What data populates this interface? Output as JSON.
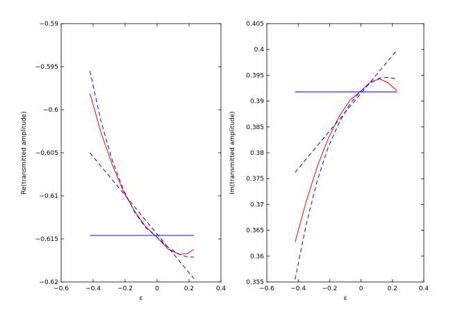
{
  "chart_data": [
    {
      "type": "line",
      "xlabel": "ε",
      "ylabel": "Re(transmitted amplitude)",
      "xlim": [
        -0.6,
        0.4
      ],
      "ylim": [
        -0.62,
        -0.59
      ],
      "xticks": [
        -0.6,
        -0.4,
        -0.2,
        0,
        0.2,
        0.4
      ],
      "xtick_labels": [
        "−0.6",
        "−0.4",
        "−0.2",
        "0",
        "0.2",
        "0.4"
      ],
      "yticks": [
        -0.59,
        -0.595,
        -0.6,
        -0.605,
        -0.61,
        -0.615,
        -0.62
      ],
      "ytick_labels": [
        "−0.59",
        "−0.595",
        "−0.6",
        "−0.605",
        "−0.61",
        "−0.615",
        "−0.62"
      ],
      "series": [
        {
          "color": "#ff0000",
          "style": "solid",
          "x": [
            -0.42,
            -0.35,
            -0.28,
            -0.21,
            -0.14,
            -0.07,
            0,
            0.07,
            0.14,
            0.19,
            0.23
          ],
          "y": [
            -0.5981,
            -0.6027,
            -0.6064,
            -0.6095,
            -0.6118,
            -0.6136,
            -0.6148,
            -0.6162,
            -0.6168,
            -0.6167,
            -0.6162
          ]
        },
        {
          "color": "#0000ff",
          "style": "solid",
          "x": [
            -0.42,
            0.23
          ],
          "y": [
            -0.6146,
            -0.6146
          ]
        },
        {
          "color": "#0000ff",
          "style": "dashed",
          "x": [
            -0.42,
            0.23
          ],
          "y": [
            -0.605,
            -0.6196
          ]
        },
        {
          "color": "#0000ff",
          "style": "dashed",
          "x": [
            -0.42,
            -0.35,
            -0.28,
            -0.21,
            -0.14,
            -0.07,
            0,
            0.07,
            0.14,
            0.19,
            0.23
          ],
          "y": [
            -0.5955,
            -0.6014,
            -0.6059,
            -0.6093,
            -0.6119,
            -0.6137,
            -0.6148,
            -0.616,
            -0.6168,
            -0.6171,
            -0.6171
          ]
        }
      ]
    },
    {
      "type": "line",
      "xlabel": "ε",
      "ylabel": "Im(transmitted amplitude)",
      "xlim": [
        -0.6,
        0.4
      ],
      "ylim": [
        0.355,
        0.405
      ],
      "xticks": [
        -0.6,
        -0.4,
        -0.2,
        0,
        0.2,
        0.4
      ],
      "xtick_labels": [
        "−0.6",
        "−0.4",
        "−0.2",
        "0",
        "0.2",
        "0.4"
      ],
      "yticks": [
        0.405,
        0.4,
        0.395,
        0.39,
        0.385,
        0.38,
        0.375,
        0.37,
        0.365,
        0.36,
        0.355
      ],
      "ytick_labels": [
        "0.405",
        "0.4",
        "0.395",
        "0.39",
        "0.385",
        "0.38",
        "0.375",
        "0.37",
        "0.365",
        "0.36",
        "0.355"
      ],
      "series": [
        {
          "color": "#ff0000",
          "style": "solid",
          "x": [
            -0.42,
            -0.35,
            -0.28,
            -0.21,
            -0.14,
            -0.07,
            0,
            0.06,
            0.12,
            0.17,
            0.23
          ],
          "y": [
            0.3627,
            0.3705,
            0.3772,
            0.3827,
            0.387,
            0.3902,
            0.392,
            0.3937,
            0.3943,
            0.3936,
            0.392
          ]
        },
        {
          "color": "#0000ff",
          "style": "solid",
          "x": [
            -0.42,
            0.23
          ],
          "y": [
            0.3918,
            0.3918
          ]
        },
        {
          "color": "#0000ff",
          "style": "dashed",
          "x": [
            -0.42,
            0.23
          ],
          "y": [
            0.3762,
            0.3999
          ]
        },
        {
          "color": "#0000ff",
          "style": "dashed",
          "x": [
            -0.42,
            -0.35,
            -0.28,
            -0.21,
            -0.14,
            -0.07,
            0,
            0.06,
            0.12,
            0.17,
            0.23
          ],
          "y": [
            0.3555,
            0.366,
            0.3745,
            0.381,
            0.3858,
            0.3895,
            0.392,
            0.3935,
            0.3945,
            0.3946,
            0.3943
          ]
        }
      ]
    }
  ]
}
